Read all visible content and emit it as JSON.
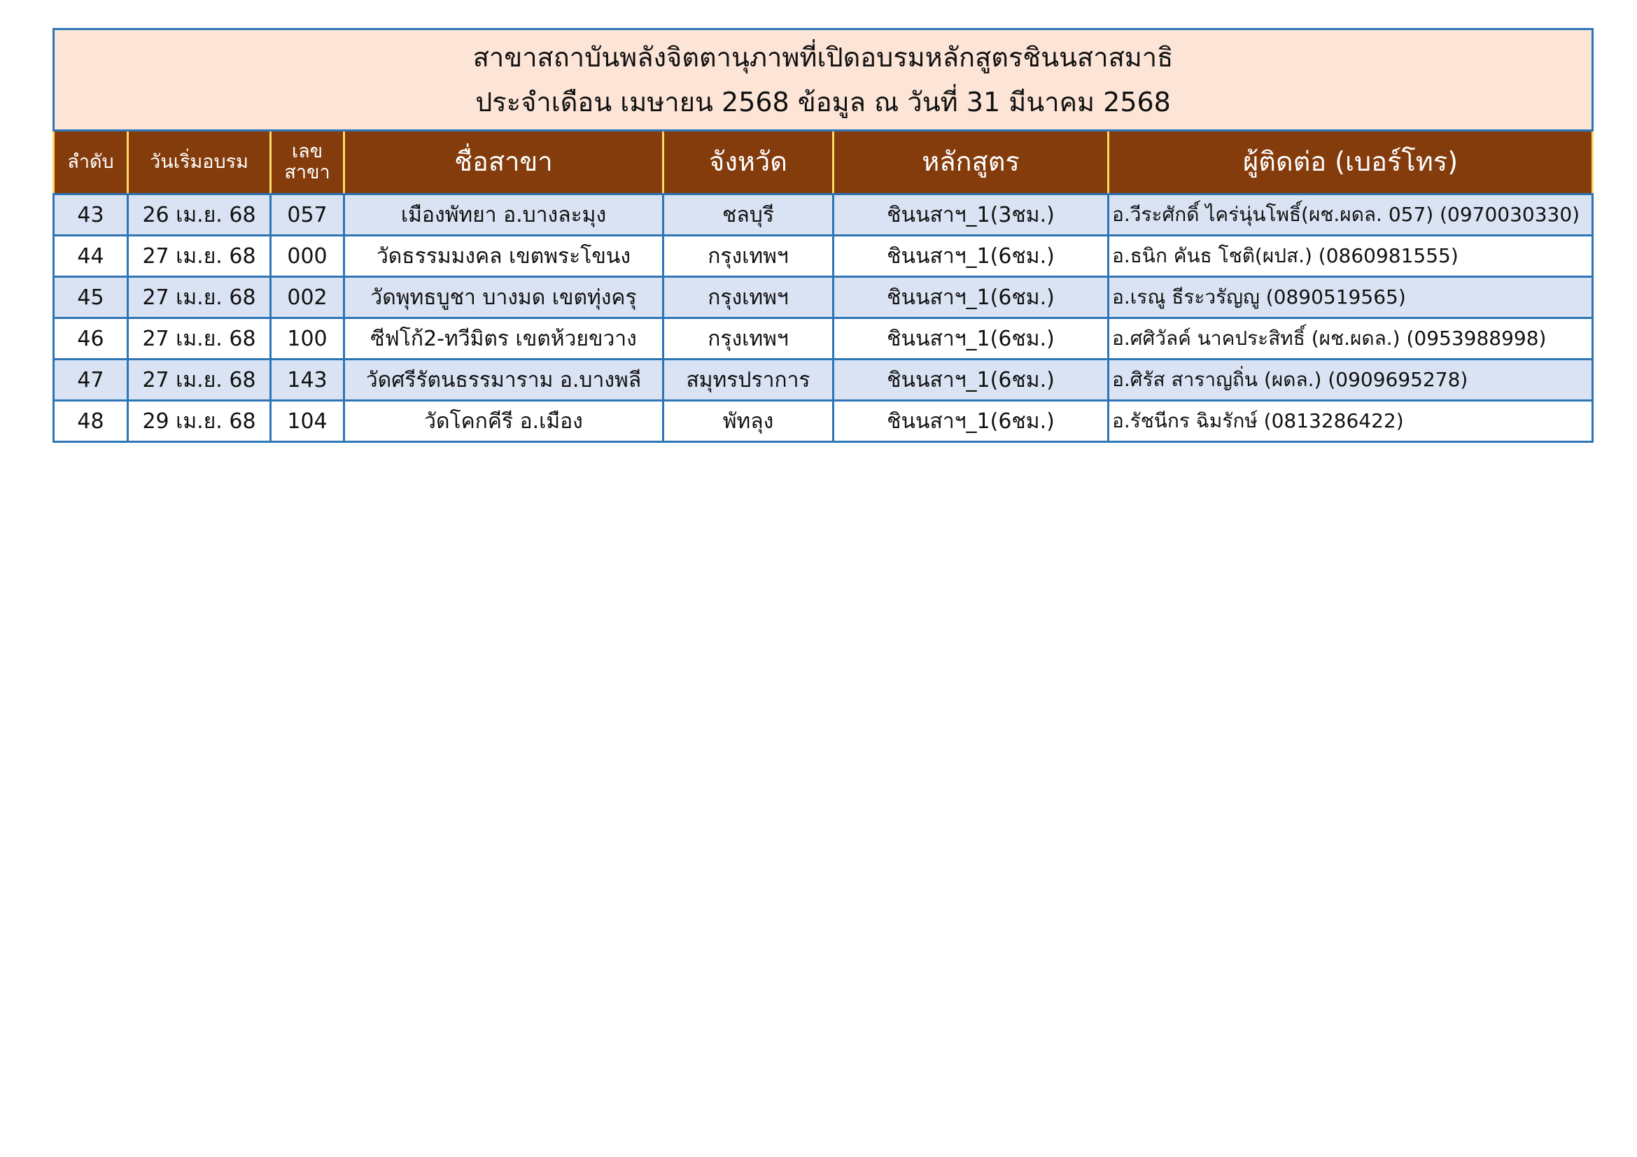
{
  "header": {
    "title_lines": [
      "สาขาสถาบันพลังจิตตานุภาพที่เปิดอบรมหลักสูตรชินนสาสมาธิ",
      "ประจำเดือน เมษายน 2568 ข้อมูล ณ วันที่ 31 มีนาคม 2568"
    ]
  },
  "table": {
    "columns": [
      "ลำดับ",
      "วันเริ่มอบรม",
      "เลข\nสาขา",
      "ชื่อสาขา",
      "จังหวัด",
      "หลักสูตร",
      "ผู้ติดต่อ (เบอร์โทร)"
    ],
    "rows": [
      [
        "43",
        "26 เม.ย. 68",
        "057",
        "เมืองพัทยา อ.บางละมุง",
        "ชลบุรี",
        "ชินนสาฯ_1(3ชม.)",
        "อ.วีระศักดิ์ ไคร่นุ่นโพธิ์(ผช.ผดล. 057) (0970030330)"
      ],
      [
        "44",
        "27 เม.ย. 68",
        "000",
        "วัดธรรมมงคล เขตพระโขนง",
        "กรุงเทพฯ",
        "ชินนสาฯ_1(6ชม.)",
        "อ.ธนิก  คันธ โชติ(ผปส.) (0860981555)"
      ],
      [
        "45",
        "27 เม.ย. 68",
        "002",
        "วัดพุทธบูชา บางมด เขตทุ่งครุ",
        "กรุงเทพฯ",
        "ชินนสาฯ_1(6ชม.)",
        "อ.เรณู ธีระวรัญญู (0890519565)"
      ],
      [
        "46",
        "27 เม.ย. 68",
        "100",
        "ซีฟโก้2-ทวีมิตร เขตห้วยขวาง",
        "กรุงเทพฯ",
        "ชินนสาฯ_1(6ชม.)",
        "อ.ศศิวัลค์ นาคประสิทธิ์ (ผช.ผดล.) (0953988998)"
      ],
      [
        "47",
        "27 เม.ย. 68",
        "143",
        "วัดศรีรัตนธรรมาราม อ.บางพลี",
        "สมุทรปราการ",
        "ชินนสาฯ_1(6ชม.)",
        "อ.ศิรัส สาราญถิ่น (ผดล.) (0909695278)"
      ],
      [
        "48",
        "29 เม.ย. 68",
        "104",
        "วัดโคกคีรี อ.เมือง",
        "พัทลุง",
        "ชินนสาฯ_1(6ชม.)",
        "อ.รัชนีกร ฉิมรักษ์ (0813286422)"
      ]
    ]
  }
}
